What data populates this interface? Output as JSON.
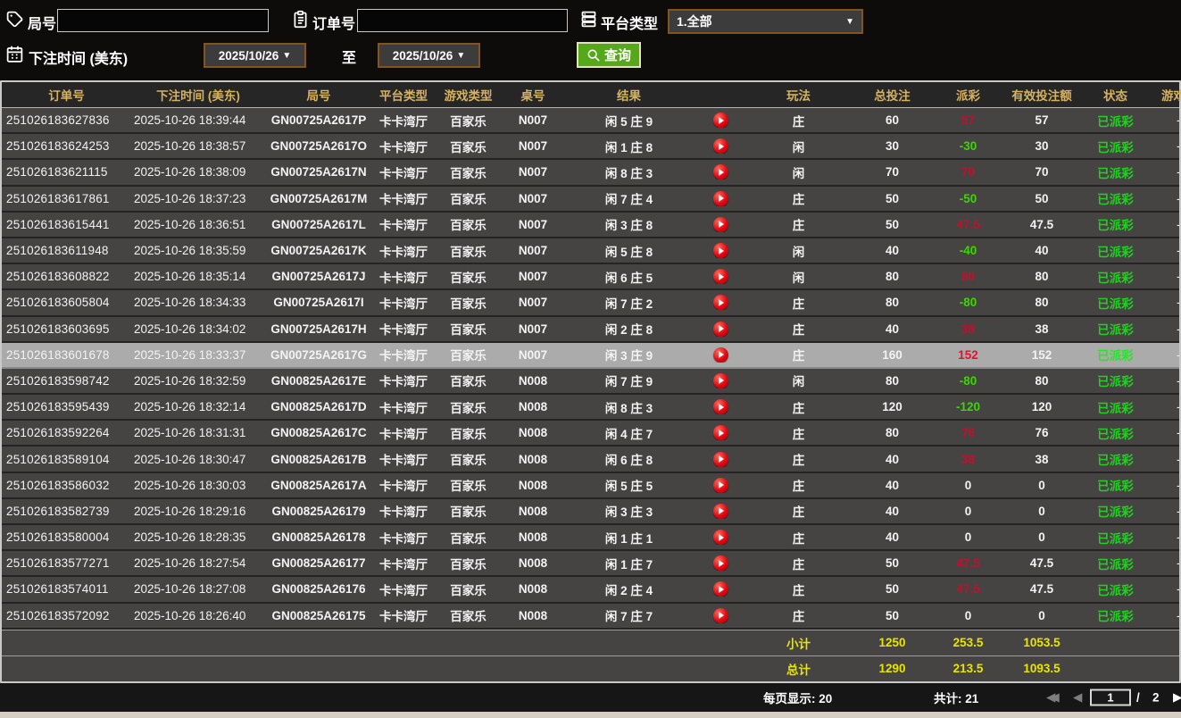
{
  "filters": {
    "round_label": "局号",
    "round_value": "",
    "order_label": "订单号",
    "order_value": "",
    "platform_label": "平台类型",
    "platform_value": "1.全部",
    "bet_time_label": "下注时间 (美东)",
    "date_from": "2025/10/26",
    "date_to": "2025/10/26",
    "to_label": "至",
    "search_label": "查询"
  },
  "table": {
    "headers": [
      {
        "key": "order",
        "label": "订单号"
      },
      {
        "key": "time",
        "label": "下注时间 (美东)"
      },
      {
        "key": "round",
        "label": "局号"
      },
      {
        "key": "platform",
        "label": "平台类型"
      },
      {
        "key": "game_type",
        "label": "游戏类型"
      },
      {
        "key": "table_no",
        "label": "桌号"
      },
      {
        "key": "result",
        "label": "结果"
      },
      {
        "key": "play_btn",
        "label": ""
      },
      {
        "key": "bet_side",
        "label": "玩法"
      },
      {
        "key": "total_bet",
        "label": "总投注"
      },
      {
        "key": "payout",
        "label": "派彩"
      },
      {
        "key": "valid_bet",
        "label": "有效投注额"
      },
      {
        "key": "status",
        "label": "状态"
      },
      {
        "key": "game_col",
        "label": "游戏"
      }
    ],
    "selected_index": 9,
    "rows": [
      {
        "order": "251026183627836",
        "time": "2025-10-26 18:39:44",
        "round": "GN00725A2617P",
        "platform": "卡卡湾厅",
        "game_type": "百家乐",
        "table_no": "N007",
        "result": "闲 5 庄 9",
        "bet_side": "庄",
        "total_bet": "60",
        "payout": "57",
        "valid_bet": "57",
        "status": "已派彩",
        "game_col": "-"
      },
      {
        "order": "251026183624253",
        "time": "2025-10-26 18:38:57",
        "round": "GN00725A2617O",
        "platform": "卡卡湾厅",
        "game_type": "百家乐",
        "table_no": "N007",
        "result": "闲 1 庄 8",
        "bet_side": "闲",
        "total_bet": "30",
        "payout": "-30",
        "valid_bet": "30",
        "status": "已派彩",
        "game_col": "-"
      },
      {
        "order": "251026183621115",
        "time": "2025-10-26 18:38:09",
        "round": "GN00725A2617N",
        "platform": "卡卡湾厅",
        "game_type": "百家乐",
        "table_no": "N007",
        "result": "闲 8 庄 3",
        "bet_side": "闲",
        "total_bet": "70",
        "payout": "70",
        "valid_bet": "70",
        "status": "已派彩",
        "game_col": "-"
      },
      {
        "order": "251026183617861",
        "time": "2025-10-26 18:37:23",
        "round": "GN00725A2617M",
        "platform": "卡卡湾厅",
        "game_type": "百家乐",
        "table_no": "N007",
        "result": "闲 7 庄 4",
        "bet_side": "庄",
        "total_bet": "50",
        "payout": "-50",
        "valid_bet": "50",
        "status": "已派彩",
        "game_col": "-"
      },
      {
        "order": "251026183615441",
        "time": "2025-10-26 18:36:51",
        "round": "GN00725A2617L",
        "platform": "卡卡湾厅",
        "game_type": "百家乐",
        "table_no": "N007",
        "result": "闲 3 庄 8",
        "bet_side": "庄",
        "total_bet": "50",
        "payout": "47.5",
        "valid_bet": "47.5",
        "status": "已派彩",
        "game_col": "-"
      },
      {
        "order": "251026183611948",
        "time": "2025-10-26 18:35:59",
        "round": "GN00725A2617K",
        "platform": "卡卡湾厅",
        "game_type": "百家乐",
        "table_no": "N007",
        "result": "闲 5 庄 8",
        "bet_side": "闲",
        "total_bet": "40",
        "payout": "-40",
        "valid_bet": "40",
        "status": "已派彩",
        "game_col": "-"
      },
      {
        "order": "251026183608822",
        "time": "2025-10-26 18:35:14",
        "round": "GN00725A2617J",
        "platform": "卡卡湾厅",
        "game_type": "百家乐",
        "table_no": "N007",
        "result": "闲 6 庄 5",
        "bet_side": "闲",
        "total_bet": "80",
        "payout": "80",
        "valid_bet": "80",
        "status": "已派彩",
        "game_col": "-"
      },
      {
        "order": "251026183605804",
        "time": "2025-10-26 18:34:33",
        "round": "GN00725A2617I",
        "platform": "卡卡湾厅",
        "game_type": "百家乐",
        "table_no": "N007",
        "result": "闲 7 庄 2",
        "bet_side": "庄",
        "total_bet": "80",
        "payout": "-80",
        "valid_bet": "80",
        "status": "已派彩",
        "game_col": "-"
      },
      {
        "order": "251026183603695",
        "time": "2025-10-26 18:34:02",
        "round": "GN00725A2617H",
        "platform": "卡卡湾厅",
        "game_type": "百家乐",
        "table_no": "N007",
        "result": "闲 2 庄 8",
        "bet_side": "庄",
        "total_bet": "40",
        "payout": "38",
        "valid_bet": "38",
        "status": "已派彩",
        "game_col": "-"
      },
      {
        "order": "251026183601678",
        "time": "2025-10-26 18:33:37",
        "round": "GN00725A2617G",
        "platform": "卡卡湾厅",
        "game_type": "百家乐",
        "table_no": "N007",
        "result": "闲 3 庄 9",
        "bet_side": "庄",
        "total_bet": "160",
        "payout": "152",
        "valid_bet": "152",
        "status": "已派彩",
        "game_col": "-"
      },
      {
        "order": "251026183598742",
        "time": "2025-10-26 18:32:59",
        "round": "GN00825A2617E",
        "platform": "卡卡湾厅",
        "game_type": "百家乐",
        "table_no": "N008",
        "result": "闲 7 庄 9",
        "bet_side": "闲",
        "total_bet": "80",
        "payout": "-80",
        "valid_bet": "80",
        "status": "已派彩",
        "game_col": "-"
      },
      {
        "order": "251026183595439",
        "time": "2025-10-26 18:32:14",
        "round": "GN00825A2617D",
        "platform": "卡卡湾厅",
        "game_type": "百家乐",
        "table_no": "N008",
        "result": "闲 8 庄 3",
        "bet_side": "庄",
        "total_bet": "120",
        "payout": "-120",
        "valid_bet": "120",
        "status": "已派彩",
        "game_col": "-"
      },
      {
        "order": "251026183592264",
        "time": "2025-10-26 18:31:31",
        "round": "GN00825A2617C",
        "platform": "卡卡湾厅",
        "game_type": "百家乐",
        "table_no": "N008",
        "result": "闲 4 庄 7",
        "bet_side": "庄",
        "total_bet": "80",
        "payout": "76",
        "valid_bet": "76",
        "status": "已派彩",
        "game_col": "-"
      },
      {
        "order": "251026183589104",
        "time": "2025-10-26 18:30:47",
        "round": "GN00825A2617B",
        "platform": "卡卡湾厅",
        "game_type": "百家乐",
        "table_no": "N008",
        "result": "闲 6 庄 8",
        "bet_side": "庄",
        "total_bet": "40",
        "payout": "38",
        "valid_bet": "38",
        "status": "已派彩",
        "game_col": "-"
      },
      {
        "order": "251026183586032",
        "time": "2025-10-26 18:30:03",
        "round": "GN00825A2617A",
        "platform": "卡卡湾厅",
        "game_type": "百家乐",
        "table_no": "N008",
        "result": "闲 5 庄 5",
        "bet_side": "庄",
        "total_bet": "40",
        "payout": "0",
        "valid_bet": "0",
        "status": "已派彩",
        "game_col": "-"
      },
      {
        "order": "251026183582739",
        "time": "2025-10-26 18:29:16",
        "round": "GN00825A26179",
        "platform": "卡卡湾厅",
        "game_type": "百家乐",
        "table_no": "N008",
        "result": "闲 3 庄 3",
        "bet_side": "庄",
        "total_bet": "40",
        "payout": "0",
        "valid_bet": "0",
        "status": "已派彩",
        "game_col": "-"
      },
      {
        "order": "251026183580004",
        "time": "2025-10-26 18:28:35",
        "round": "GN00825A26178",
        "platform": "卡卡湾厅",
        "game_type": "百家乐",
        "table_no": "N008",
        "result": "闲 1 庄 1",
        "bet_side": "庄",
        "total_bet": "40",
        "payout": "0",
        "valid_bet": "0",
        "status": "已派彩",
        "game_col": "-"
      },
      {
        "order": "251026183577271",
        "time": "2025-10-26 18:27:54",
        "round": "GN00825A26177",
        "platform": "卡卡湾厅",
        "game_type": "百家乐",
        "table_no": "N008",
        "result": "闲 1 庄 7",
        "bet_side": "庄",
        "total_bet": "50",
        "payout": "47.5",
        "valid_bet": "47.5",
        "status": "已派彩",
        "game_col": "-"
      },
      {
        "order": "251026183574011",
        "time": "2025-10-26 18:27:08",
        "round": "GN00825A26176",
        "platform": "卡卡湾厅",
        "game_type": "百家乐",
        "table_no": "N008",
        "result": "闲 2 庄 4",
        "bet_side": "庄",
        "total_bet": "50",
        "payout": "47.5",
        "valid_bet": "47.5",
        "status": "已派彩",
        "game_col": "-"
      },
      {
        "order": "251026183572092",
        "time": "2025-10-26 18:26:40",
        "round": "GN00825A26175",
        "platform": "卡卡湾厅",
        "game_type": "百家乐",
        "table_no": "N008",
        "result": "闲 7 庄 7",
        "bet_side": "庄",
        "total_bet": "50",
        "payout": "0",
        "valid_bet": "0",
        "status": "已派彩",
        "game_col": "-"
      }
    ],
    "subtotal": {
      "label": "小计",
      "total_bet": "1250",
      "payout": "253.5",
      "valid_bet": "1053.5"
    },
    "total": {
      "label": "总计",
      "total_bet": "1290",
      "payout": "213.5",
      "valid_bet": "1093.5"
    }
  },
  "pagination": {
    "per_page": "每页显示: 20",
    "total_count": "共计: 21",
    "page": "1",
    "separator": "/",
    "page_count": "2"
  },
  "colors": {
    "header_gold": "#d6b25f",
    "win_red": "#c40e2e",
    "loss_green": "#3ed408",
    "status_green": "#23cf23",
    "totals_yellow": "#e8e500",
    "search_green": "#57a71b",
    "date_border_brown": "#82551f",
    "selected_row_gray": "#ababab"
  }
}
